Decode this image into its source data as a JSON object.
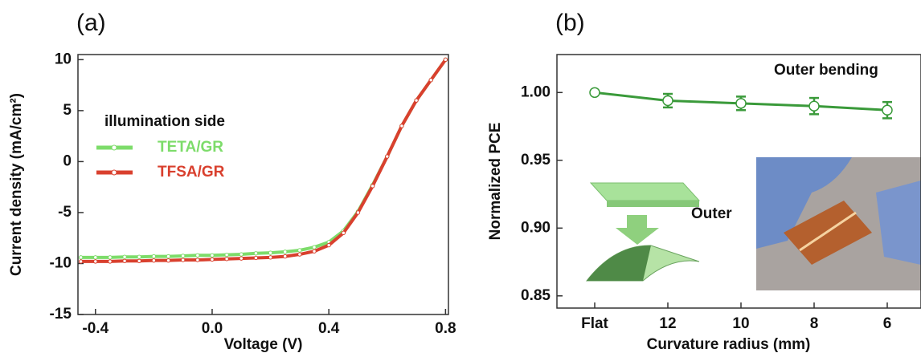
{
  "chart_data": [
    {
      "type": "line",
      "panel": "(a)",
      "xlabel": "Voltage (V)",
      "ylabel": "Current density (mA/cm²)",
      "legend_title": "illumination side",
      "x": [
        -0.45,
        -0.4,
        -0.35,
        -0.3,
        -0.25,
        -0.2,
        -0.15,
        -0.1,
        -0.05,
        0,
        0.05,
        0.1,
        0.15,
        0.2,
        0.25,
        0.3,
        0.35,
        0.4,
        0.45,
        0.5,
        0.55,
        0.6,
        0.65,
        0.7,
        0.75,
        0.8
      ],
      "series": [
        {
          "name": "TETA/GR",
          "color": "#7ddc6a",
          "values": [
            -9.4,
            -9.4,
            -9.4,
            -9.35,
            -9.35,
            -9.3,
            -9.3,
            -9.25,
            -9.2,
            -9.2,
            -9.15,
            -9.1,
            -9.0,
            -8.95,
            -8.85,
            -8.7,
            -8.4,
            -7.9,
            -6.8,
            -4.9,
            -2.3,
            0.5,
            3.5,
            6.0,
            8.0,
            10.0
          ]
        },
        {
          "name": "TFSA/GR",
          "color": "#d9402e",
          "values": [
            -9.8,
            -9.8,
            -9.8,
            -9.75,
            -9.75,
            -9.7,
            -9.7,
            -9.65,
            -9.65,
            -9.6,
            -9.55,
            -9.5,
            -9.45,
            -9.4,
            -9.3,
            -9.1,
            -8.8,
            -8.2,
            -7.0,
            -5.0,
            -2.4,
            0.5,
            3.5,
            6.0,
            8.0,
            10.0
          ]
        }
      ],
      "xlim": [
        -0.46,
        0.81
      ],
      "xticks": [
        -0.4,
        {
          "value": 0,
          "label": "0.0"
        },
        0.4,
        0.8
      ],
      "ylim": [
        -15,
        10.5
      ],
      "yticks": [
        -15,
        -10,
        -5,
        0,
        5,
        10
      ]
    },
    {
      "type": "errorbar-line",
      "panel": "(b)",
      "xlabel": "Curvature radius (mm)",
      "ylabel": "Normalized PCE",
      "annotations": [
        "Outer bending",
        "Outer"
      ],
      "categories": [
        "Flat",
        "12",
        "10",
        "8",
        "6"
      ],
      "values": [
        1.0,
        0.994,
        0.992,
        0.99,
        0.987
      ],
      "errors": [
        0,
        0.005,
        0.005,
        0.006,
        0.006
      ],
      "color": "#3a9a3a",
      "ylim": [
        0.841,
        1.028
      ],
      "yticks": [
        0.85,
        {
          "value": 0.9,
          "label": "0.90"
        },
        0.95,
        {
          "value": 1,
          "label": "1.00"
        }
      ]
    }
  ]
}
